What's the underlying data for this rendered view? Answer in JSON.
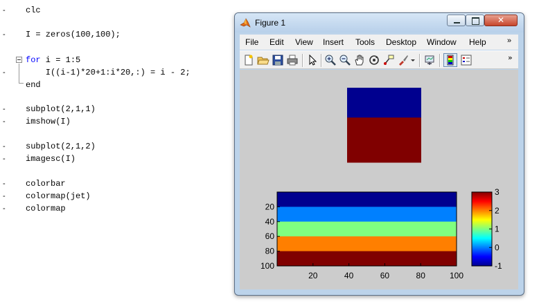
{
  "editor": {
    "lines": [
      {
        "text": "clc"
      },
      {
        "text": "I = zeros(100,100);"
      },
      {
        "keyword": "for",
        "rest": " i = 1:5"
      },
      {
        "text": "    I((i-1)*20+1:i*20,:) = i - 2;"
      },
      {
        "keyword": "end"
      },
      {
        "text": "subplot(2,1,1)"
      },
      {
        "text": "imshow(I)"
      },
      {
        "text": "subplot(2,1,2)"
      },
      {
        "text": "imagesc(I)"
      },
      {
        "text": "colorbar"
      },
      {
        "text": "colormap(jet)"
      },
      {
        "text": "colormap"
      }
    ],
    "line_marker": "-"
  },
  "figure": {
    "title": "Figure 1",
    "close_glyph": "✕",
    "menu": [
      "File",
      "Edit",
      "View",
      "Insert",
      "Tools",
      "Desktop",
      "Window",
      "Help"
    ],
    "overflow_glyph": "»",
    "toolbar_icons": [
      "new-figure-icon",
      "open-file-icon",
      "save-icon",
      "print-icon",
      "edit-plot-arrow-icon",
      "zoom-in-icon",
      "zoom-out-icon",
      "pan-hand-icon",
      "rotate-3d-icon",
      "data-cursor-icon",
      "brush-icon",
      "link-plot-icon",
      "insert-colorbar-icon",
      "insert-legend-icon"
    ]
  },
  "colors": {
    "keyword": "#0000ff",
    "canvas_bg": "#cccccc",
    "jet_dark_blue": "#00008f",
    "jet_blue": "#0080ff",
    "jet_green": "#80ff80",
    "jet_orange": "#ff7f00",
    "jet_dark_red": "#800000"
  },
  "chart_data": [
    {
      "type": "heatmap",
      "title": "",
      "description_source": "imshow(I) with jet colormap, no axes",
      "rows": 100,
      "cols": 100,
      "bands": [
        {
          "rows": [
            1,
            20
          ],
          "value": -1
        },
        {
          "rows": [
            21,
            40
          ],
          "value": 0
        },
        {
          "rows": [
            41,
            60
          ],
          "value": 1
        },
        {
          "rows": [
            61,
            80
          ],
          "value": 2
        },
        {
          "rows": [
            81,
            100
          ],
          "value": 3
        }
      ],
      "display_range": [
        0,
        1
      ],
      "visible_colors": [
        "#00008f",
        "#800000"
      ]
    },
    {
      "type": "heatmap",
      "title": "",
      "description_source": "imagesc(I) with colorbar, jet colormap",
      "rows": 100,
      "cols": 100,
      "bands": [
        {
          "rows": [
            1,
            20
          ],
          "value": -1,
          "color": "#00008f"
        },
        {
          "rows": [
            21,
            40
          ],
          "value": 0,
          "color": "#0080ff"
        },
        {
          "rows": [
            41,
            60
          ],
          "value": 1,
          "color": "#80ff80"
        },
        {
          "rows": [
            61,
            80
          ],
          "value": 2,
          "color": "#ff7f00"
        },
        {
          "rows": [
            81,
            100
          ],
          "value": 3,
          "color": "#800000"
        }
      ],
      "xticks": [
        "20",
        "40",
        "60",
        "80",
        "100"
      ],
      "yticks": [
        "20",
        "40",
        "60",
        "80",
        "100"
      ],
      "colorbar": {
        "range": [
          -1,
          3
        ],
        "ticks": [
          "3",
          "2",
          "1",
          "0",
          "-1"
        ],
        "colormap": "jet"
      }
    }
  ]
}
